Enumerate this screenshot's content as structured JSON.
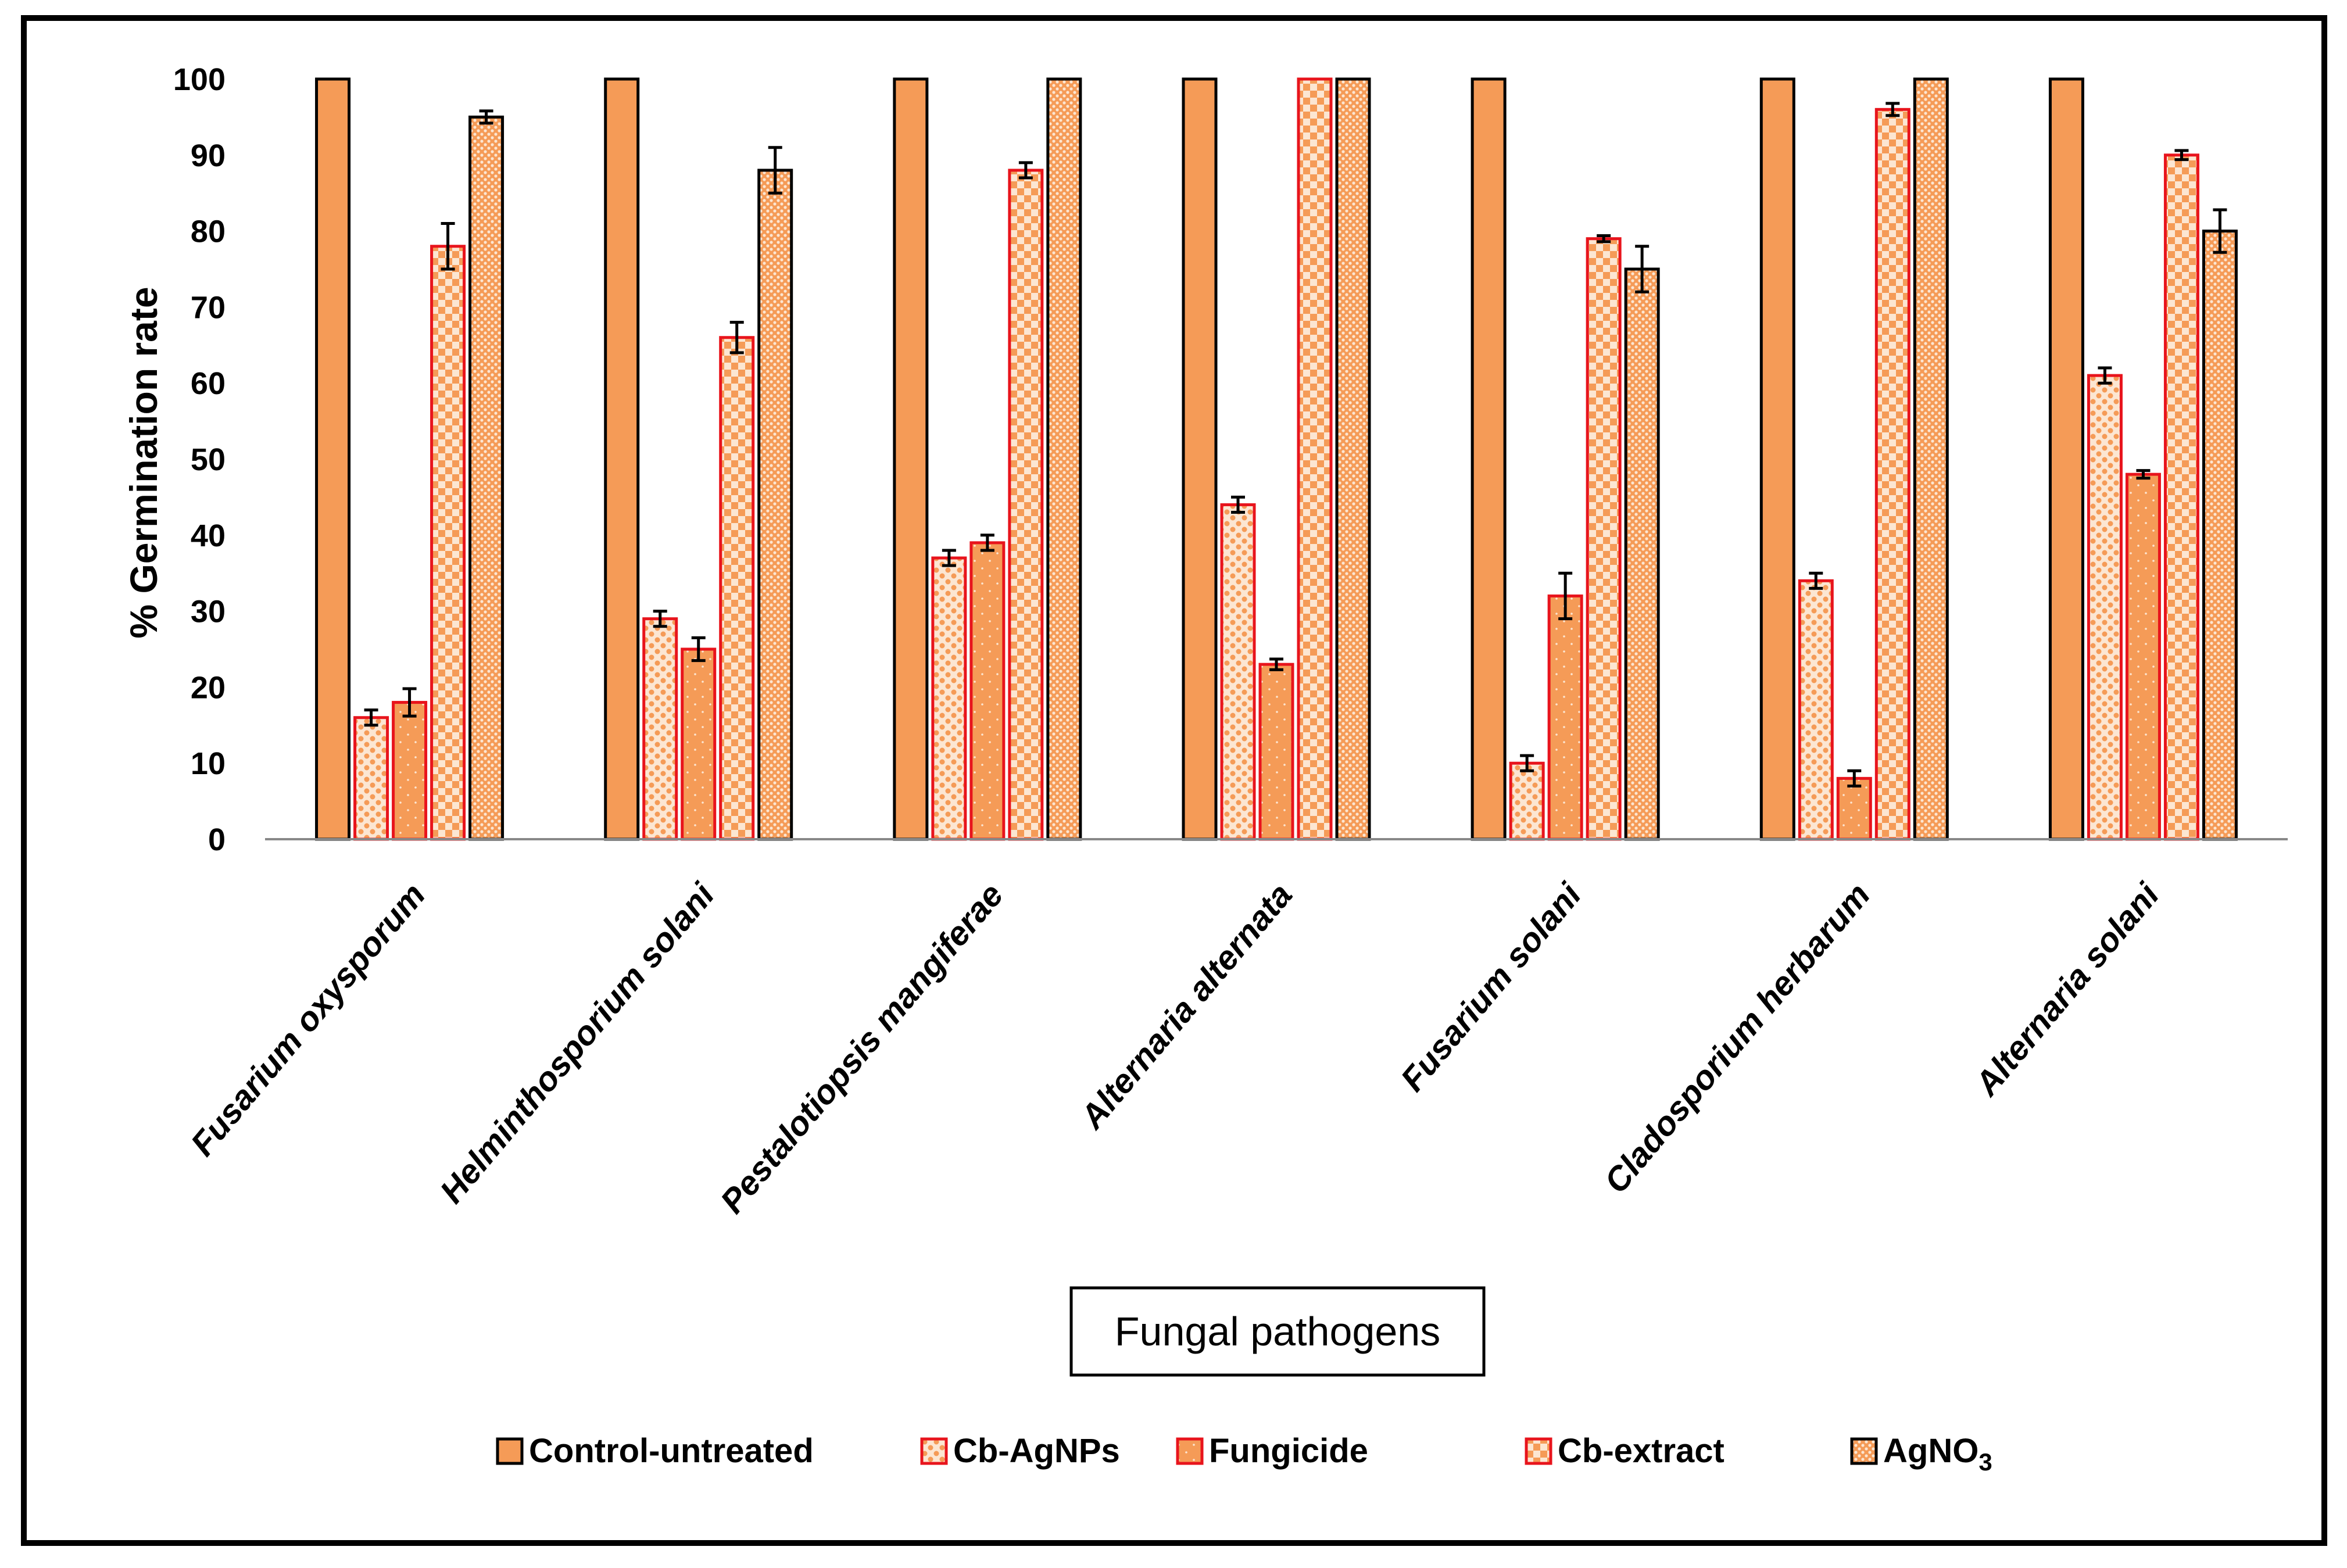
{
  "chart_data": {
    "type": "bar",
    "ylabel": "% Germination rate",
    "xlabel": "Fungal pathogens",
    "ylim": [
      0,
      100
    ],
    "yticks": [
      0,
      10,
      20,
      30,
      40,
      50,
      60,
      70,
      80,
      90,
      100
    ],
    "grid": false,
    "legend_position": "bottom",
    "categories": [
      "Fusarium oxysporum",
      "Helminthosporium solani",
      "Pestalotiopsis mangiferae",
      "Alternaria alternata",
      "Fusarium solani",
      "Cladosporium herbarum",
      "Alternaria solani"
    ],
    "series": [
      {
        "name": "Control-untreated",
        "pattern": "solid",
        "stroke": "#000000",
        "values": [
          100,
          100,
          100,
          100,
          100,
          100,
          100
        ],
        "errors": [
          0,
          0,
          0,
          0,
          0,
          0,
          0
        ]
      },
      {
        "name": "Cb-AgNPs",
        "pattern": "dots",
        "stroke": "#e8141c",
        "values": [
          16,
          29,
          37,
          44,
          10,
          34,
          61
        ],
        "errors": [
          1,
          1,
          1,
          1,
          1,
          1,
          1
        ]
      },
      {
        "name": "Fungicide",
        "pattern": "fine-dots",
        "stroke": "#e8141c",
        "values": [
          18,
          25,
          39,
          23,
          32,
          8,
          48
        ],
        "errors": [
          1.8,
          1.5,
          1,
          0.7,
          3,
          1,
          0.5
        ]
      },
      {
        "name": "Cb-extract",
        "pattern": "checker",
        "stroke": "#e8141c",
        "values": [
          78,
          66,
          88,
          100,
          79,
          96,
          90
        ],
        "errors": [
          3,
          2,
          1,
          0,
          0.4,
          0.8,
          0.6
        ]
      },
      {
        "name": "AgNO",
        "name_subscript": "3",
        "pattern": "weave",
        "stroke": "#000000",
        "values": [
          95,
          88,
          100,
          100,
          75,
          100,
          80
        ],
        "errors": [
          0.8,
          3,
          0,
          0,
          3,
          0,
          2.8
        ]
      }
    ]
  },
  "colors": {
    "bar_fill": "#f59b57",
    "pattern_light": "#fce6d2",
    "red_outline": "#e8141c",
    "black": "#000000"
  }
}
